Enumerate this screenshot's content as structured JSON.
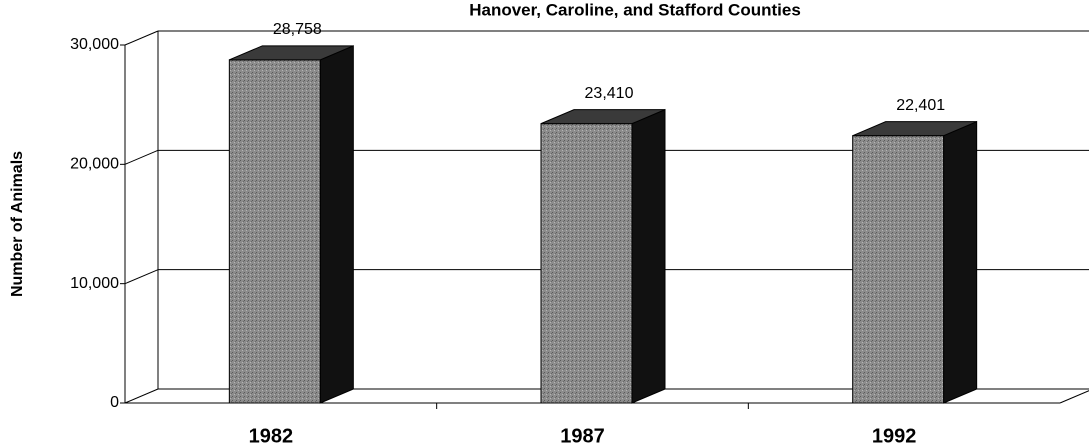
{
  "chart_data": {
    "type": "bar3d",
    "title": "Hanover, Caroline, and Stafford Counties",
    "ylabel": "Number of Animals",
    "categories": [
      "1982",
      "1987",
      "1992"
    ],
    "values": [
      28758,
      23410,
      22401
    ],
    "value_labels": [
      "28,758",
      "23,410",
      "22,401"
    ],
    "color": "#8c8c8c",
    "ylim": [
      0,
      30000
    ],
    "yticks": [
      0,
      {
        "value": 10000,
        "label": "10,000"
      },
      {
        "value": 20000,
        "label": "20,000"
      },
      {
        "value": 30000,
        "label": "30,000"
      }
    ],
    "grid": true
  }
}
